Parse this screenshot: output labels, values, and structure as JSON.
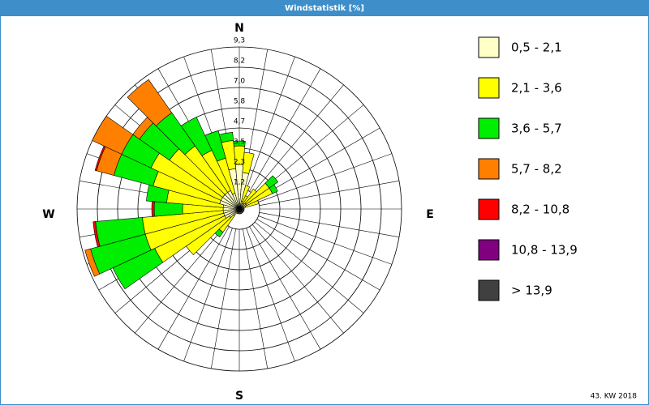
{
  "chart_data": {
    "type": "windrose",
    "title": "Windstatistik [%]",
    "footnote": "43. KW 2018",
    "compass_labels": [
      "N",
      "E",
      "S",
      "W"
    ],
    "categories": [
      null,
      null,
      null,
      null,
      null,
      null,
      null,
      null,
      null,
      null,
      null,
      null,
      null,
      null,
      null,
      null,
      null,
      null,
      null,
      null,
      null,
      null,
      null,
      null,
      null,
      null,
      null,
      null,
      null,
      null,
      null,
      null,
      null,
      null,
      null,
      null
    ],
    "ylim": [
      0,
      9.32
    ],
    "yticks": [
      {
        "value": 1.165,
        "label": "1,2"
      },
      {
        "value": 2.33,
        "label": "2,3"
      },
      {
        "value": 3.495,
        "label": "3,5"
      },
      {
        "value": 4.66,
        "label": "4,7"
      },
      {
        "value": 5.825,
        "label": "5,8"
      },
      {
        "value": 6.99,
        "label": "7,0"
      },
      {
        "value": 8.155,
        "label": "8,2"
      },
      {
        "value": 9.32,
        "label": "9,3"
      }
    ],
    "grid": true,
    "series": [
      {
        "name": "0,5 - 2,1",
        "color": "#ffffc8",
        "values": [
          2.56,
          2.1,
          0.47,
          0.37,
          0.37,
          0.47,
          0.47,
          0.37,
          0.28,
          0.28,
          0.28,
          0.28,
          0.28,
          0.28,
          0.28,
          0.28,
          0.28,
          0.28,
          0.28,
          0.28,
          0.28,
          0.28,
          0.47,
          0.7,
          0.93,
          0.93,
          0.93,
          0.93,
          0.93,
          1.17,
          1.17,
          1.17,
          1.17,
          1.17,
          0.93,
          2.33
        ]
      },
      {
        "name": "2,1 - 3,6",
        "color": "#ffff00",
        "values": [
          1.07,
          1.17,
          0.93,
          0.47,
          1.03,
          1.63,
          1.63,
          0.79,
          0,
          0,
          0,
          0,
          0,
          0,
          0,
          0,
          0,
          0,
          0,
          0,
          0,
          0,
          1.17,
          3.03,
          4.43,
          4.66,
          4.66,
          2.33,
          3.26,
          3.96,
          4.43,
          3.73,
          3.26,
          2.56,
          2.1,
          1.63
        ]
      },
      {
        "name": "3,6 - 5,7",
        "color": "#00ee00",
        "values": [
          0.28,
          0,
          0,
          0,
          0,
          0.61,
          0.33,
          0,
          0,
          0,
          0,
          0,
          0,
          0,
          0,
          0,
          0,
          0,
          0,
          0,
          0,
          0,
          0.33,
          0,
          2.66,
          3.26,
          2.7,
          1.63,
          1.17,
          2.33,
          1.86,
          2.1,
          2.33,
          2.1,
          1.63,
          0.47
        ]
      },
      {
        "name": "5,7 - 8,2",
        "color": "#ff8000",
        "values": [
          0,
          0,
          0,
          0,
          0,
          0,
          0,
          0,
          0,
          0,
          0,
          0,
          0,
          0,
          0,
          0,
          0,
          0,
          0,
          0,
          0,
          0,
          0,
          0,
          0,
          0.33,
          0,
          0,
          0,
          1.03,
          1.86,
          0.47,
          2.33,
          0,
          0,
          0
        ]
      },
      {
        "name": "8,2 - 10,8",
        "color": "#ff0000",
        "values": [
          0,
          0,
          0,
          0,
          0,
          0,
          0,
          0,
          0,
          0,
          0,
          0,
          0,
          0,
          0,
          0,
          0,
          0,
          0,
          0,
          0,
          0,
          0,
          0,
          0,
          0,
          0.14,
          0.14,
          0,
          0.09,
          0,
          0,
          0,
          0,
          0,
          0
        ]
      },
      {
        "name": "10,8 - 13,9",
        "color": "#800080",
        "values": [
          0,
          0,
          0,
          0,
          0,
          0,
          0,
          0,
          0,
          0,
          0,
          0,
          0,
          0,
          0,
          0,
          0,
          0,
          0,
          0,
          0,
          0,
          0,
          0,
          0,
          0,
          0,
          0,
          0,
          0,
          0,
          0,
          0,
          0,
          0,
          0
        ]
      },
      {
        "name": "> 13,9",
        "color": "#404040",
        "values": [
          0,
          0,
          0,
          0,
          0,
          0,
          0,
          0,
          0,
          0,
          0,
          0,
          0,
          0,
          0,
          0,
          0,
          0,
          0,
          0,
          0,
          0,
          0,
          0,
          0,
          0,
          0,
          0,
          0,
          0,
          0,
          0,
          0,
          0,
          0,
          0
        ]
      }
    ]
  }
}
